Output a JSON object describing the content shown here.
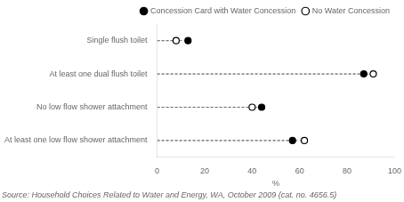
{
  "chart_data": {
    "type": "dot",
    "categories": [
      "Single flush toilet",
      "At least one dual flush toilet",
      "No low flow shower attachment",
      "At least one low flow shower attachment"
    ],
    "series": [
      {
        "name": "Concession Card with Water Concession",
        "color": "#000000",
        "marker": "filled_circle",
        "values": [
          13,
          87,
          44,
          57
        ]
      },
      {
        "name": "No Water Concession",
        "color": "#000000",
        "marker": "open_circle",
        "values": [
          8,
          91,
          40,
          62
        ]
      }
    ],
    "xlabel": "%",
    "xlim": [
      0,
      100
    ],
    "xticks": [
      0,
      20,
      40,
      60,
      80,
      100
    ],
    "grid": false,
    "legend": "upper right",
    "annotations": [
      "Source: Household Choices Related to Water and Energy, WA, October 2009 (cat. no. 4656.5)"
    ]
  }
}
